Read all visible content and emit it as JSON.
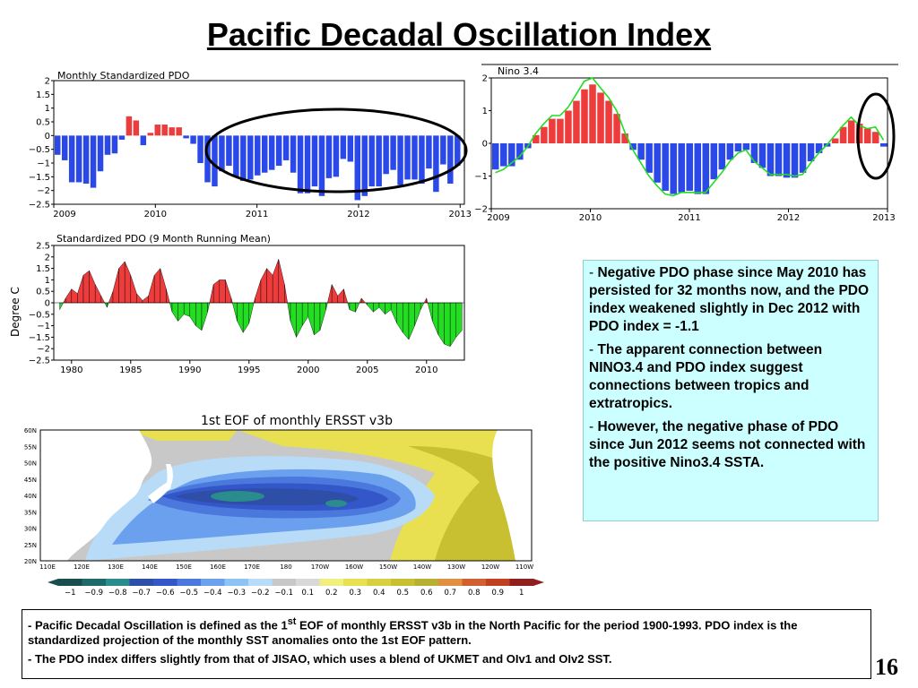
{
  "title": "Pacific Decadal Oscillation Index",
  "page_number": "16",
  "notes": [
    {
      "dash": "- ",
      "text": "Negative PDO phase since May 2010 has persisted for 32 months now, and the PDO index weakened slightly in Dec 2012 with PDO index  = -1.1"
    },
    {
      "dash": "- ",
      "text": "The apparent connection between NINO3.4 and PDO index suggest connections between tropics and extratropics."
    },
    {
      "dash": "- ",
      "text": "However, the negative phase of PDO since Jun 2012 seems not connected with the positive Nino3.4 SSTA."
    }
  ],
  "footer": {
    "line1_pre": "- Pacific Decadal Oscillation is defined as the 1",
    "line1_sup": "st",
    "line1_post": " EOF of monthly ERSST v3b in the North Pacific for the period 1900-1993. PDO index is the standardized projection of the monthly SST anomalies onto  the 1st EOF pattern.",
    "line2": "- The PDO index differs slightly from that of JISAO, which uses a blend of UKMET and OIv1 and OIv2 SST."
  },
  "colors": {
    "positive": "#ee3b3b",
    "negative_bar": "#2b48e8",
    "negative_fill": "#22dd22",
    "line": "#22dd22",
    "note_bg": "#ccffff"
  },
  "chart_data": [
    {
      "type": "bar",
      "title": "Monthly Standardized PDO",
      "ylim": [
        -2.5,
        2
      ],
      "yticks": [
        "2",
        "1.5",
        "1",
        "0.5",
        "0",
        "−0.5",
        "−1",
        "−1.5",
        "−2",
        "−2.5"
      ],
      "xticks": [
        "2009",
        "2010",
        "2011",
        "2012",
        "2013"
      ],
      "x_start": "2009-01",
      "values": [
        -0.7,
        -0.9,
        -1.7,
        -1.7,
        -1.75,
        -1.9,
        -1.3,
        -0.7,
        -0.65,
        -0.15,
        0.7,
        0.55,
        -0.35,
        0.1,
        0.4,
        0.4,
        0.3,
        0.3,
        -0.1,
        -0.3,
        -1.0,
        -1.7,
        -1.85,
        -1.3,
        -1.1,
        -1.5,
        -1.65,
        -1.6,
        -1.45,
        -1.35,
        -1.25,
        -1.1,
        -0.9,
        -1.35,
        -2.1,
        -2.1,
        -1.85,
        -2.2,
        -1.55,
        -1.5,
        -0.85,
        -0.95,
        -2.35,
        -2.2,
        -1.85,
        -1.85,
        -1.4,
        -1.25,
        -1.8,
        -1.6,
        -1.6,
        -1.75,
        -1.2,
        -2.05,
        -1.05,
        -1.75,
        -1.1
      ]
    },
    {
      "type": "bar",
      "title": "Nino 3.4",
      "ylim": [
        -2,
        2
      ],
      "yticks": [
        "2",
        "1",
        "0",
        "−1",
        "−2"
      ],
      "xticks": [
        "2009",
        "2010",
        "2011",
        "2012",
        "2013"
      ],
      "x_start": "2009-01",
      "values": [
        -0.8,
        -0.7,
        -0.7,
        -0.5,
        -0.15,
        0.25,
        0.5,
        0.75,
        0.75,
        1.0,
        1.3,
        1.65,
        1.8,
        1.55,
        1.3,
        0.9,
        0.3,
        -0.2,
        -0.5,
        -0.9,
        -1.2,
        -1.45,
        -1.55,
        -1.5,
        -1.45,
        -1.55,
        -1.55,
        -1.1,
        -0.8,
        -0.5,
        -0.25,
        -0.2,
        -0.6,
        -0.75,
        -1.0,
        -1.0,
        -1.05,
        -1.05,
        -0.9,
        -0.55,
        -0.3,
        -0.1,
        0.15,
        0.5,
        0.7,
        0.6,
        0.45,
        0.35,
        -0.1
      ],
      "line": [
        -0.9,
        -0.8,
        -0.6,
        -0.4,
        -0.1,
        0.3,
        0.6,
        0.85,
        0.85,
        1.1,
        1.5,
        1.9,
        2.0,
        1.7,
        1.4,
        1.0,
        0.35,
        -0.2,
        -0.6,
        -1.0,
        -1.3,
        -1.55,
        -1.6,
        -1.5,
        -1.5,
        -1.5,
        -1.5,
        -1.2,
        -0.9,
        -0.55,
        -0.3,
        -0.2,
        -0.55,
        -0.75,
        -0.95,
        -0.95,
        -0.95,
        -1.0,
        -0.95,
        -0.6,
        -0.3,
        -0.05,
        0.25,
        0.55,
        0.8,
        0.55,
        0.45,
        0.5,
        0.1
      ]
    },
    {
      "type": "area",
      "title": "Standardized PDO (9 Month Running Mean)",
      "ylabel": "Degree C",
      "ylim": [
        -2.5,
        2.5
      ],
      "yticks": [
        "2.5",
        "2",
        "1.5",
        "1",
        "0.5",
        "0",
        "−0.5",
        "−1",
        "−1.5",
        "−2",
        "−2.5"
      ],
      "xticks": [
        "1980",
        "1985",
        "1990",
        "1995",
        "2000",
        "2005",
        "2010"
      ],
      "x": [
        1979.0,
        1979.5,
        1980.0,
        1980.5,
        1981.0,
        1981.5,
        1982.0,
        1982.5,
        1983.0,
        1983.5,
        1984.0,
        1984.5,
        1985.0,
        1985.5,
        1986.0,
        1986.5,
        1987.0,
        1987.5,
        1988.0,
        1988.5,
        1989.0,
        1989.5,
        1990.0,
        1990.5,
        1991.0,
        1991.5,
        1992.0,
        1992.5,
        1993.0,
        1993.5,
        1994.0,
        1994.5,
        1995.0,
        1995.5,
        1996.0,
        1996.5,
        1997.0,
        1997.5,
        1998.0,
        1998.5,
        1999.0,
        1999.5,
        2000.0,
        2000.5,
        2001.0,
        2001.5,
        2002.0,
        2002.5,
        2003.0,
        2003.5,
        2004.0,
        2004.5,
        2005.0,
        2005.5,
        2006.0,
        2006.5,
        2007.0,
        2007.5,
        2008.0,
        2008.5,
        2009.0,
        2009.5,
        2010.0,
        2010.5,
        2011.0,
        2011.5,
        2012.0,
        2012.5,
        2013.0
      ],
      "values": [
        -0.3,
        0.2,
        0.6,
        0.4,
        1.2,
        1.4,
        0.8,
        0.3,
        -0.2,
        0.5,
        1.5,
        1.8,
        1.2,
        0.4,
        0.1,
        0.3,
        1.2,
        1.5,
        0.6,
        -0.4,
        -0.8,
        -0.5,
        -0.6,
        -1.0,
        -1.2,
        -0.4,
        0.8,
        1.0,
        1.0,
        0.2,
        -0.8,
        -1.3,
        -0.9,
        0.2,
        1.0,
        1.5,
        1.2,
        1.9,
        0.8,
        -0.8,
        -1.5,
        -1.0,
        -0.6,
        -1.4,
        -1.2,
        -0.3,
        0.8,
        0.3,
        0.6,
        -0.3,
        -0.4,
        0.2,
        -0.1,
        -0.4,
        -0.2,
        -0.5,
        -0.3,
        -0.9,
        -1.3,
        -1.6,
        -1.0,
        -0.3,
        0.2,
        -0.8,
        -1.4,
        -1.8,
        -1.9,
        -1.5,
        -1.2
      ]
    }
  ],
  "map": {
    "title": "1st EOF  of  monthly ERSST v3b",
    "lat_labels": [
      "60N",
      "55N",
      "50N",
      "45N",
      "40N",
      "35N",
      "30N",
      "25N",
      "20N"
    ],
    "lon_labels": [
      "110E",
      "120E",
      "130E",
      "140E",
      "150E",
      "160E",
      "170E",
      "180",
      "170W",
      "160W",
      "150W",
      "140W",
      "130W",
      "120W",
      "110W"
    ],
    "colorbar_labels": [
      "−1",
      "−0.9",
      "−0.8",
      "−0.7",
      "−0.6",
      "−0.5",
      "−0.4",
      "−0.3",
      "−0.2",
      "−0.1",
      "0.1",
      "0.2",
      "0.3",
      "0.4",
      "0.5",
      "0.6",
      "0.7",
      "0.8",
      "0.9",
      "1"
    ],
    "colorbar_colors": [
      "#1a4e4e",
      "#1e6a6a",
      "#2a8c8c",
      "#2e4ea8",
      "#3356c8",
      "#4a78dc",
      "#6aa0ee",
      "#8ec4f4",
      "#b8dcf8",
      "#c8c8c8",
      "#d8d8d8",
      "#f0f080",
      "#e8e050",
      "#d8d040",
      "#c8c030",
      "#b8b030",
      "#e09040",
      "#d06030",
      "#c04020",
      "#902020"
    ]
  }
}
